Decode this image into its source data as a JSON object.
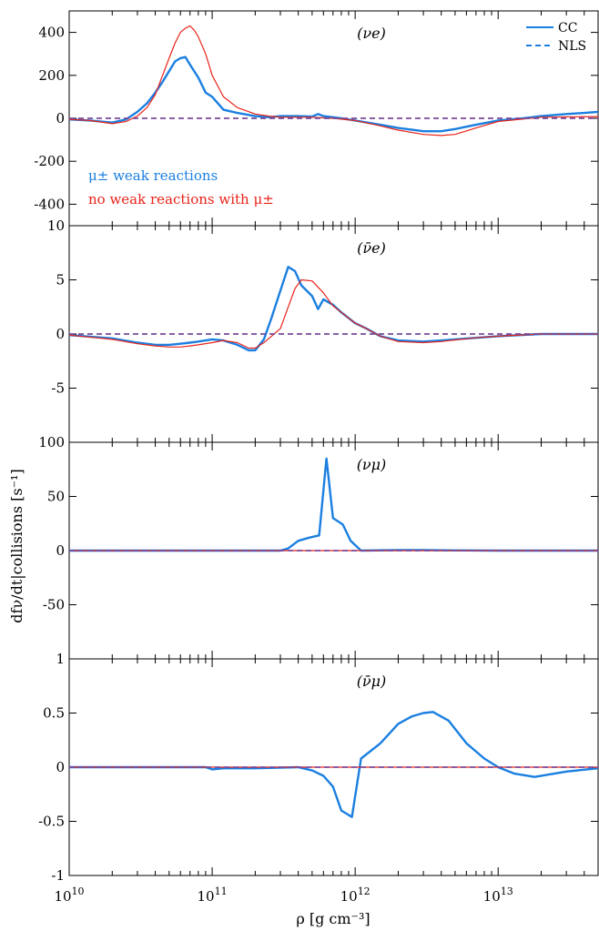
{
  "chart_data": {
    "type": "line",
    "xlabel": "ρ [g cm⁻³]",
    "ylabel": "dfν/dt|collisions [s⁻¹]",
    "x_scale": "log",
    "xlim": [
      10000000000.0,
      50000000000000.0
    ],
    "x_ticks": [
      {
        "value": 10000000000.0,
        "base": "10",
        "exp": "10"
      },
      {
        "value": 100000000000.0,
        "base": "10",
        "exp": "11"
      },
      {
        "value": 1000000000000.0,
        "base": "10",
        "exp": "12"
      },
      {
        "value": 10000000000000.0,
        "base": "10",
        "exp": "13"
      }
    ],
    "legend": {
      "position": "top-right",
      "entries": [
        {
          "label": "CC",
          "style": "solid"
        },
        {
          "label": "NLS",
          "style": "dashed"
        }
      ]
    },
    "colors": {
      "mu_weak": "#1a7fe0",
      "no_mu_weak": "#e8231a",
      "nls_line": "#7a4a9a"
    },
    "annotations": {
      "mu_weak_label": "μ± weak reactions",
      "no_mu_weak_label": "no weak reactions with μ±"
    },
    "panels": [
      {
        "title": "(νe)",
        "ylim": [
          -500,
          500
        ],
        "yticks": [
          "400",
          "200",
          "0",
          "-200",
          "-400"
        ],
        "ytick_values": [
          400,
          200,
          0,
          -200,
          -400
        ],
        "series": [
          {
            "key": "mu_weak",
            "style": "solid",
            "x": [
              10000000000.0,
              14000000000.0,
              20000000000.0,
              25000000000.0,
              30000000000.0,
              35000000000.0,
              40000000000.0,
              45000000000.0,
              50000000000.0,
              55000000000.0,
              60000000000.0,
              65000000000.0,
              70000000000.0,
              80000000000.0,
              90000000000.0,
              100000000000.0,
              120000000000.0,
              150000000000.0,
              200000000000.0,
              250000000000.0,
              300000000000.0,
              400000000000.0,
              500000000000.0,
              550000000000.0,
              600000000000.0,
              700000000000.0,
              800000000000.0,
              1000000000000.0,
              1500000000000.0,
              2000000000000.0,
              3000000000000.0,
              4000000000000.0,
              5000000000000.0,
              7000000000000.0,
              10000000000000.0,
              15000000000000.0,
              20000000000000.0,
              30000000000000.0,
              40000000000000.0,
              50000000000000.0
            ],
            "y": [
              -5,
              -10,
              -20,
              -5,
              30,
              70,
              120,
              170,
              220,
              265,
              280,
              285,
              250,
              190,
              120,
              100,
              40,
              25,
              10,
              5,
              10,
              10,
              8,
              20,
              10,
              5,
              0,
              -10,
              -30,
              -45,
              -60,
              -60,
              -50,
              -30,
              -10,
              0,
              10,
              20,
              25,
              30
            ]
          },
          {
            "key": "no_mu_weak",
            "style": "solid",
            "x": [
              10000000000.0,
              14000000000.0,
              20000000000.0,
              25000000000.0,
              30000000000.0,
              35000000000.0,
              40000000000.0,
              45000000000.0,
              50000000000.0,
              55000000000.0,
              60000000000.0,
              65000000000.0,
              70000000000.0,
              75000000000.0,
              80000000000.0,
              90000000000.0,
              100000000000.0,
              120000000000.0,
              150000000000.0,
              200000000000.0,
              250000000000.0,
              300000000000.0,
              400000000000.0,
              500000000000.0,
              700000000000.0,
              1000000000000.0,
              1500000000000.0,
              2000000000000.0,
              3000000000000.0,
              4000000000000.0,
              5000000000000.0,
              7000000000000.0,
              10000000000000.0,
              20000000000000.0,
              50000000000000.0
            ],
            "y": [
              -5,
              -10,
              -25,
              -15,
              10,
              50,
              110,
              200,
              280,
              350,
              400,
              420,
              430,
              410,
              380,
              300,
              200,
              100,
              50,
              20,
              10,
              5,
              5,
              5,
              0,
              -10,
              -35,
              -55,
              -75,
              -80,
              -75,
              -45,
              -15,
              5,
              8
            ]
          },
          {
            "key": "nls_line",
            "style": "dashed",
            "x": [
              10000000000.0,
              50000000000000.0
            ],
            "y": [
              0,
              0
            ]
          }
        ]
      },
      {
        "title": "(ν̄e)",
        "ylim": [
          -10,
          10
        ],
        "yticks": [
          "10",
          "5",
          "0",
          "-5"
        ],
        "ytick_values": [
          10,
          5,
          0,
          -5
        ],
        "series": [
          {
            "key": "mu_weak",
            "style": "solid",
            "x": [
              10000000000.0,
              20000000000.0,
              30000000000.0,
              40000000000.0,
              50000000000.0,
              60000000000.0,
              70000000000.0,
              80000000000.0,
              100000000000.0,
              120000000000.0,
              150000000000.0,
              180000000000.0,
              200000000000.0,
              230000000000.0,
              260000000000.0,
              300000000000.0,
              340000000000.0,
              380000000000.0,
              420000000000.0,
              500000000000.0,
              550000000000.0,
              600000000000.0,
              700000000000.0,
              800000000000.0,
              1000000000000.0,
              1200000000000.0,
              1500000000000.0,
              2000000000000.0,
              3000000000000.0,
              4000000000000.0,
              5000000000000.0,
              7000000000000.0,
              10000000000000.0,
              20000000000000.0,
              50000000000000.0
            ],
            "y": [
              -0.1,
              -0.4,
              -0.8,
              -1.0,
              -1.0,
              -0.9,
              -0.8,
              -0.7,
              -0.5,
              -0.6,
              -1.0,
              -1.5,
              -1.5,
              -0.5,
              1.5,
              4.0,
              6.2,
              5.8,
              4.5,
              3.5,
              2.3,
              3.2,
              2.7,
              2.0,
              1.0,
              0.5,
              -0.2,
              -0.6,
              -0.7,
              -0.6,
              -0.5,
              -0.35,
              -0.2,
              0,
              0
            ]
          },
          {
            "key": "no_mu_weak",
            "style": "solid",
            "x": [
              10000000000.0,
              20000000000.0,
              30000000000.0,
              40000000000.0,
              50000000000.0,
              60000000000.0,
              70000000000.0,
              80000000000.0,
              100000000000.0,
              120000000000.0,
              150000000000.0,
              180000000000.0,
              200000000000.0,
              230000000000.0,
              260000000000.0,
              300000000000.0,
              340000000000.0,
              380000000000.0,
              420000000000.0,
              500000000000.0,
              600000000000.0,
              700000000000.0,
              800000000000.0,
              1000000000000.0,
              1200000000000.0,
              1500000000000.0,
              2000000000000.0,
              3000000000000.0,
              4000000000000.0,
              5000000000000.0,
              7000000000000.0,
              10000000000000.0,
              20000000000000.0,
              50000000000000.0
            ],
            "y": [
              -0.1,
              -0.5,
              -0.9,
              -1.1,
              -1.2,
              -1.2,
              -1.1,
              -1.0,
              -0.8,
              -0.6,
              -0.8,
              -1.3,
              -1.3,
              -0.8,
              -0.2,
              0.5,
              2.5,
              4.2,
              5.0,
              4.9,
              3.8,
              2.6,
              2.0,
              1.0,
              0.5,
              -0.2,
              -0.7,
              -0.8,
              -0.7,
              -0.55,
              -0.35,
              -0.2,
              0,
              0
            ]
          },
          {
            "key": "nls_line",
            "style": "dashed",
            "x": [
              10000000000.0,
              50000000000000.0
            ],
            "y": [
              0,
              0
            ]
          }
        ]
      },
      {
        "title": "(νμ)",
        "ylim": [
          -100,
          100
        ],
        "yticks": [
          "100",
          "50",
          "0",
          "-50"
        ],
        "ytick_values": [
          100,
          50,
          0,
          -50
        ],
        "series": [
          {
            "key": "mu_weak",
            "style": "solid",
            "x": [
              10000000000.0,
              300000000000.0,
              340000000000.0,
              400000000000.0,
              480000000000.0,
              560000000000.0,
              630000000000.0,
              700000000000.0,
              820000000000.0,
              930000000000.0,
              1100000000000.0,
              2000000000000.0,
              3000000000000.0,
              5000000000000.0,
              10000000000000.0,
              50000000000000.0
            ],
            "y": [
              0,
              0,
              2,
              9,
              12,
              14,
              85,
              30,
              24,
              9,
              0,
              0.5,
              0.5,
              0.2,
              0,
              0
            ]
          },
          {
            "key": "no_mu_weak",
            "style": "solid",
            "x": [
              10000000000.0,
              50000000000000.0
            ],
            "y": [
              0,
              0
            ]
          },
          {
            "key": "nls_line",
            "style": "dashed",
            "x": [
              10000000000.0,
              50000000000000.0
            ],
            "y": [
              0,
              0
            ]
          }
        ]
      },
      {
        "title": "(ν̄μ)",
        "ylim": [
          -1,
          1
        ],
        "yticks": [
          "1",
          "0.5",
          "0",
          "-0.5",
          "-1"
        ],
        "ytick_values": [
          1,
          0.5,
          0,
          -0.5,
          -1
        ],
        "series": [
          {
            "key": "mu_weak",
            "style": "solid",
            "x": [
              10000000000.0,
              90000000000.0,
              100000000000.0,
              120000000000.0,
              200000000000.0,
              400000000000.0,
              500000000000.0,
              600000000000.0,
              700000000000.0,
              800000000000.0,
              950000000000.0,
              1100000000000.0,
              1500000000000.0,
              2000000000000.0,
              2500000000000.0,
              3000000000000.0,
              3500000000000.0,
              4500000000000.0,
              6000000000000.0,
              8000000000000.0,
              10000000000000.0,
              13000000000000.0,
              18000000000000.0,
              30000000000000.0,
              50000000000000.0
            ],
            "y": [
              0,
              0,
              -0.02,
              -0.01,
              -0.01,
              0,
              -0.03,
              -0.08,
              -0.18,
              -0.4,
              -0.46,
              0.08,
              0.22,
              0.4,
              0.47,
              0.5,
              0.51,
              0.43,
              0.22,
              0.08,
              0.0,
              -0.06,
              -0.09,
              -0.04,
              -0.01
            ]
          },
          {
            "key": "no_mu_weak",
            "style": "solid",
            "x": [
              10000000000.0,
              50000000000000.0
            ],
            "y": [
              0,
              0
            ]
          },
          {
            "key": "nls_line",
            "style": "dashed",
            "x": [
              10000000000.0,
              50000000000000.0
            ],
            "y": [
              0,
              0
            ]
          }
        ]
      }
    ]
  }
}
